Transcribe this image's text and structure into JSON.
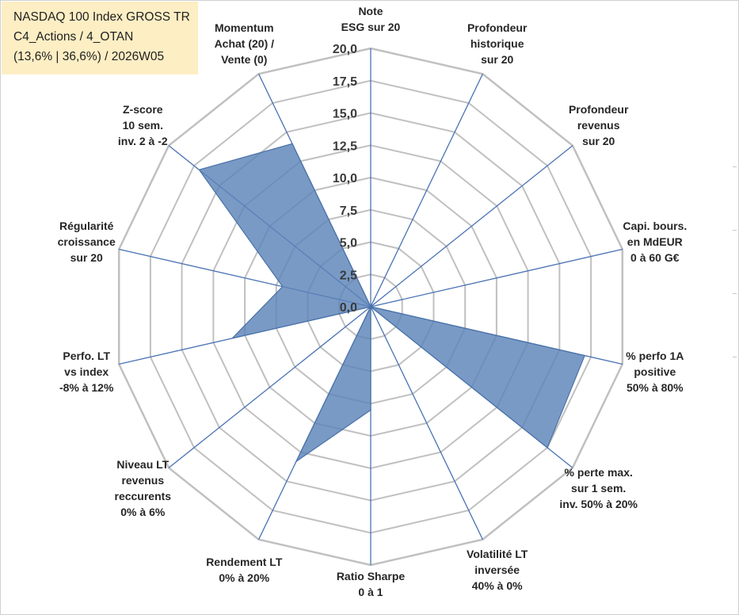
{
  "title_box": {
    "line1": "NASDAQ 100 Index GROSS TR",
    "line2": "C4_Actions / 4_OTAN",
    "line3": "(13,6% | 36,6%) / 2026W05"
  },
  "colors": {
    "fill": "#5b84b8",
    "stroke": "#4a72a8",
    "grid": "#c0c0c0",
    "spoke": "#4a72b4",
    "title_bg": "#fdeec4"
  },
  "chart_data": {
    "type": "radar",
    "title": "NASDAQ 100 Index GROSS TR",
    "rmin": 0,
    "rmax": 20,
    "grid_step": 2.5,
    "grid_levels": 8,
    "tick_labels": [
      "0,0",
      "2,5",
      "5,0",
      "7,5",
      "10,0",
      "12,5",
      "15,0",
      "17,5",
      "20,0"
    ],
    "axes": [
      {
        "name": "note-esg",
        "lines": [
          "Note",
          "ESG sur 20"
        ],
        "value": 0
      },
      {
        "name": "profondeur-historique",
        "lines": [
          "Profondeur",
          "historique",
          "sur 20"
        ],
        "value": 0
      },
      {
        "name": "profondeur-revenus",
        "lines": [
          "Profondeur",
          "revenus",
          "sur 20"
        ],
        "value": 0
      },
      {
        "name": "capi-bours",
        "lines": [
          "Capi. bours.",
          "en MdEUR",
          "0 à 60 G€"
        ],
        "value": 0
      },
      {
        "name": "perfo-1a",
        "lines": [
          "% perfo 1A",
          "positive",
          "50% à 80%"
        ],
        "value": 17.0
      },
      {
        "name": "perte-max",
        "lines": [
          "% perte max.",
          "sur 1 sem.",
          "inv. 50% à 20%"
        ],
        "value": 17.5
      },
      {
        "name": "volatilite-lt",
        "lines": [
          "Volatilité LT",
          "inversée",
          "40% à 0%"
        ],
        "value": 0
      },
      {
        "name": "ratio-sharpe",
        "lines": [
          "Ratio Sharpe",
          "0 à 1"
        ],
        "value": 8.0
      },
      {
        "name": "rendement-lt",
        "lines": [
          "Rendement LT",
          "0% à 20%"
        ],
        "value": 13.3
      },
      {
        "name": "niveau-lt-revenus",
        "lines": [
          "Niveau LT",
          "revenus",
          "reccurents",
          "0% à 6%"
        ],
        "value": 0
      },
      {
        "name": "perfo-lt-index",
        "lines": [
          "Perfo. LT",
          "vs index",
          "-8% à 12%"
        ],
        "value": 11.0
      },
      {
        "name": "regularite-croissance",
        "lines": [
          "Régularité",
          "croissance",
          "sur 20"
        ],
        "value": 7.0
      },
      {
        "name": "z-score",
        "lines": [
          "Z-score",
          "10 sem.",
          "inv. 2 à -2"
        ],
        "value": 17.0
      },
      {
        "name": "momentum",
        "lines": [
          "Momentum",
          "Achat (20) /",
          "Vente (0)"
        ],
        "value": 14.0
      }
    ]
  }
}
